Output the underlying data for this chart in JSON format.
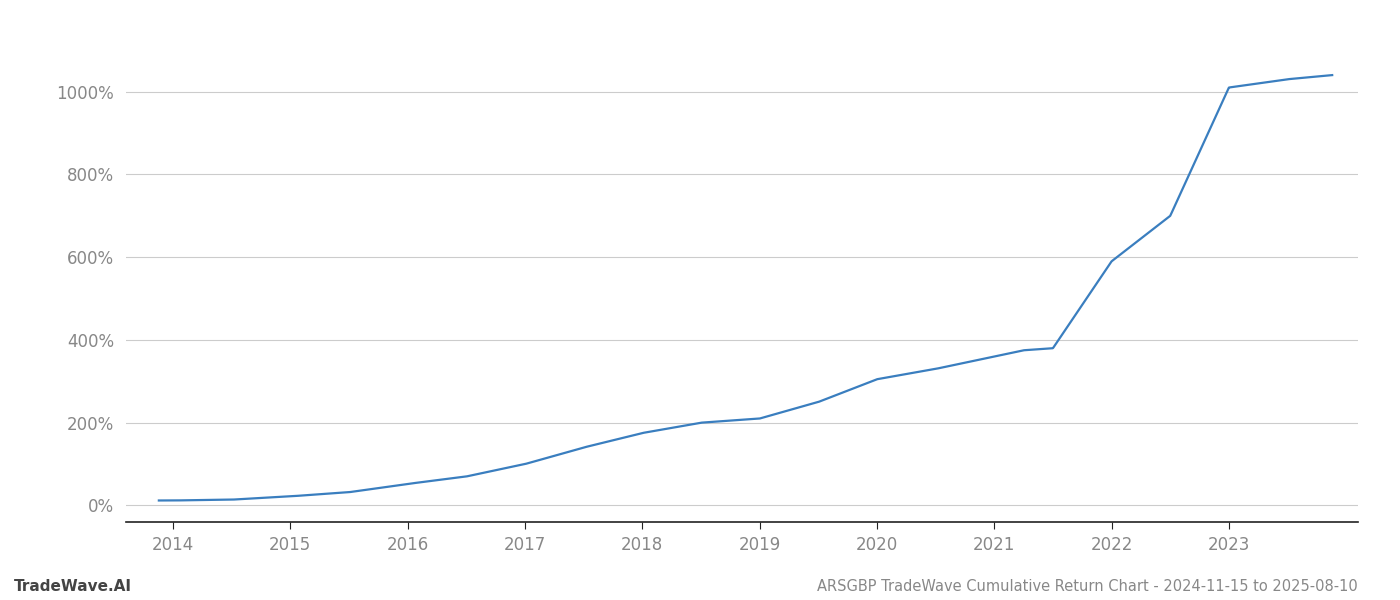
{
  "title": "ARSGBP TradeWave Cumulative Return Chart - 2024-11-15 to 2025-08-10",
  "watermark": "TradeWave.AI",
  "line_color": "#3a7ebf",
  "background_color": "#ffffff",
  "grid_color": "#cccccc",
  "axis_color": "#888888",
  "x_years": [
    2013.88,
    2014.0,
    2014.5,
    2015.0,
    2015.5,
    2016.0,
    2016.5,
    2017.0,
    2017.5,
    2018.0,
    2018.5,
    2019.0,
    2019.5,
    2020.0,
    2020.5,
    2021.0,
    2021.25,
    2021.5,
    2022.0,
    2022.5,
    2023.0,
    2023.5,
    2023.88
  ],
  "y_values": [
    12,
    12,
    14,
    22,
    32,
    52,
    70,
    100,
    140,
    175,
    200,
    210,
    250,
    305,
    330,
    360,
    375,
    380,
    590,
    700,
    1010,
    1030,
    1040
  ],
  "yticks": [
    0,
    200,
    400,
    600,
    800,
    1000
  ],
  "ylim": [
    -40,
    1120
  ],
  "xlim": [
    2013.6,
    2024.1
  ],
  "xticks": [
    2014,
    2015,
    2016,
    2017,
    2018,
    2019,
    2020,
    2021,
    2022,
    2023
  ],
  "title_fontsize": 10.5,
  "watermark_fontsize": 11,
  "tick_fontsize": 12,
  "line_width": 1.6
}
